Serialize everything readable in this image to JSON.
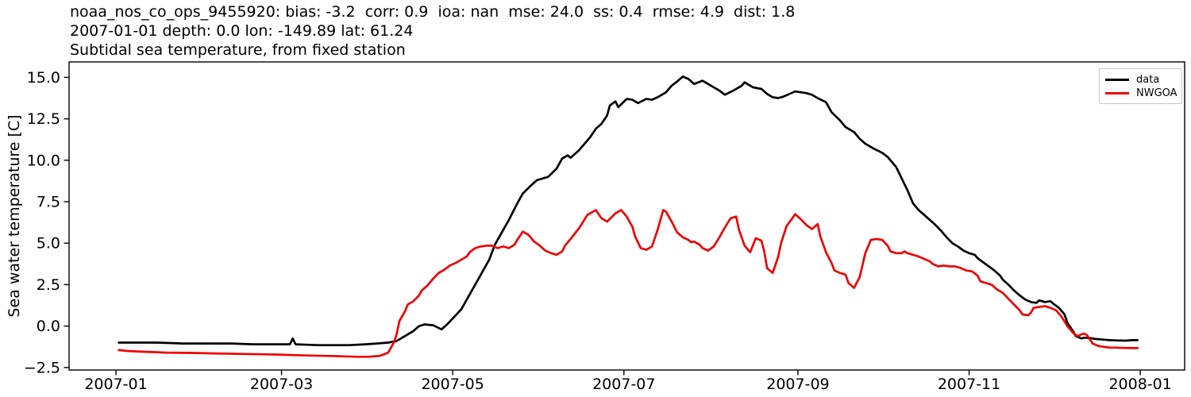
{
  "chart": {
    "titles": [
      "noaa_nos_co_ops_9455920: bias: -3.2  corr: 0.9  ioa: nan  mse: 24.0  ss: 0.4  rmse: 4.9  dist: 1.8",
      "2007-01-01 depth: 0.0 lon: -149.89 lat: 61.24",
      "Subtidal sea temperature, from fixed station"
    ],
    "ylabel": "Sea water temperature [C]",
    "colors": {
      "data_line": "#000000",
      "nwgoa_line": "#ee0000",
      "axis": "#000000",
      "legend_border": "#c9c9c9",
      "background": "#ffffff"
    },
    "legend": [
      {
        "label": "data",
        "color": "#000000"
      },
      {
        "label": "NWGOA",
        "color": "#ee0000"
      }
    ]
  },
  "chart_data": {
    "type": "line",
    "title": "Subtidal sea temperature, from fixed station",
    "xlabel": "",
    "ylabel": "Sea water temperature [C]",
    "x_unit": "days since 2007-01-01",
    "xlim_days": [
      -16.7,
      380.8
    ],
    "ylim": [
      -2.65,
      15.93
    ],
    "grid": false,
    "legend_position": "upper right",
    "x_ticks": [
      {
        "day": 0,
        "label": "2007-01"
      },
      {
        "day": 59,
        "label": "2007-03"
      },
      {
        "day": 120,
        "label": "2007-05"
      },
      {
        "day": 181,
        "label": "2007-07"
      },
      {
        "day": 243,
        "label": "2007-09"
      },
      {
        "day": 304,
        "label": "2007-11"
      },
      {
        "day": 365,
        "label": "2008-01"
      }
    ],
    "y_ticks": [
      {
        "value": 15.0,
        "label": "15.0"
      },
      {
        "value": 12.5,
        "label": "12.5"
      },
      {
        "value": 10.0,
        "label": "10.0"
      },
      {
        "value": 7.5,
        "label": "7.5"
      },
      {
        "value": 5.0,
        "label": "5.0"
      },
      {
        "value": 2.5,
        "label": "2.5"
      },
      {
        "value": 0.0,
        "label": "0.0"
      },
      {
        "value": -2.5,
        "label": "−2.5"
      }
    ],
    "series": [
      {
        "name": "data",
        "color": "#000000",
        "points": [
          [
            1,
            -1.0
          ],
          [
            7,
            -1.0
          ],
          [
            15,
            -1.0
          ],
          [
            24,
            -1.05
          ],
          [
            32,
            -1.05
          ],
          [
            41,
            -1.05
          ],
          [
            49,
            -1.1
          ],
          [
            58,
            -1.1
          ],
          [
            62,
            -1.1
          ],
          [
            63,
            -0.75
          ],
          [
            64,
            -1.1
          ],
          [
            72,
            -1.15
          ],
          [
            77,
            -1.15
          ],
          [
            83,
            -1.15
          ],
          [
            89,
            -1.1
          ],
          [
            93,
            -1.05
          ],
          [
            97,
            -1.0
          ],
          [
            100,
            -0.9
          ],
          [
            103,
            -0.6
          ],
          [
            106,
            -0.3
          ],
          [
            108,
            0.0
          ],
          [
            110,
            0.1
          ],
          [
            113,
            0.05
          ],
          [
            116,
            -0.2
          ],
          [
            118,
            0.1
          ],
          [
            123,
            1.0
          ],
          [
            128,
            2.5
          ],
          [
            133,
            4.0
          ],
          [
            135,
            4.9
          ],
          [
            140,
            6.4
          ],
          [
            143,
            7.4
          ],
          [
            145,
            8.0
          ],
          [
            148,
            8.5
          ],
          [
            150,
            8.8
          ],
          [
            154,
            9.0
          ],
          [
            157,
            9.5
          ],
          [
            159,
            10.1
          ],
          [
            161,
            10.3
          ],
          [
            162,
            10.15
          ],
          [
            165,
            10.6
          ],
          [
            167,
            11.0
          ],
          [
            169,
            11.4
          ],
          [
            171,
            11.9
          ],
          [
            173,
            12.2
          ],
          [
            175,
            12.7
          ],
          [
            176,
            13.3
          ],
          [
            178,
            13.55
          ],
          [
            179,
            13.2
          ],
          [
            182,
            13.7
          ],
          [
            184,
            13.65
          ],
          [
            186,
            13.45
          ],
          [
            189,
            13.7
          ],
          [
            191,
            13.65
          ],
          [
            193,
            13.8
          ],
          [
            196,
            14.1
          ],
          [
            198,
            14.5
          ],
          [
            200,
            14.75
          ],
          [
            202,
            15.05
          ],
          [
            204,
            14.9
          ],
          [
            206,
            14.6
          ],
          [
            209,
            14.8
          ],
          [
            212,
            14.5
          ],
          [
            215,
            14.2
          ],
          [
            217,
            13.95
          ],
          [
            220,
            14.2
          ],
          [
            223,
            14.5
          ],
          [
            224,
            14.7
          ],
          [
            227,
            14.4
          ],
          [
            230,
            14.3
          ],
          [
            232,
            14.0
          ],
          [
            234,
            13.8
          ],
          [
            236,
            13.75
          ],
          [
            238,
            13.85
          ],
          [
            240,
            14.0
          ],
          [
            242,
            14.15
          ],
          [
            244,
            14.1
          ],
          [
            246,
            14.05
          ],
          [
            248,
            13.95
          ],
          [
            250,
            13.75
          ],
          [
            253,
            13.5
          ],
          [
            255,
            12.9
          ],
          [
            258,
            12.4
          ],
          [
            260,
            12.0
          ],
          [
            263,
            11.7
          ],
          [
            265,
            11.3
          ],
          [
            267,
            11.0
          ],
          [
            270,
            10.7
          ],
          [
            273,
            10.45
          ],
          [
            275,
            10.2
          ],
          [
            278,
            9.6
          ],
          [
            280,
            8.9
          ],
          [
            282,
            8.2
          ],
          [
            284,
            7.4
          ],
          [
            286,
            7.0
          ],
          [
            288,
            6.7
          ],
          [
            290,
            6.4
          ],
          [
            292,
            6.1
          ],
          [
            294,
            5.75
          ],
          [
            296,
            5.35
          ],
          [
            298,
            5.0
          ],
          [
            300,
            4.8
          ],
          [
            302,
            4.55
          ],
          [
            304,
            4.4
          ],
          [
            306,
            4.3
          ],
          [
            307,
            4.1
          ],
          [
            309,
            3.85
          ],
          [
            311,
            3.6
          ],
          [
            313,
            3.35
          ],
          [
            315,
            3.05
          ],
          [
            316,
            2.8
          ],
          [
            318,
            2.5
          ],
          [
            320,
            2.15
          ],
          [
            322,
            1.85
          ],
          [
            324,
            1.6
          ],
          [
            326,
            1.45
          ],
          [
            328,
            1.4
          ],
          [
            329,
            1.55
          ],
          [
            331,
            1.45
          ],
          [
            333,
            1.5
          ],
          [
            334,
            1.35
          ],
          [
            336,
            1.1
          ],
          [
            338,
            0.7
          ],
          [
            339,
            0.2
          ],
          [
            341,
            -0.3
          ],
          [
            342,
            -0.6
          ],
          [
            344,
            -0.75
          ],
          [
            345,
            -0.7
          ],
          [
            347,
            -0.72
          ],
          [
            349,
            -0.78
          ],
          [
            352,
            -0.82
          ],
          [
            354,
            -0.85
          ],
          [
            357,
            -0.87
          ],
          [
            360,
            -0.88
          ],
          [
            362,
            -0.85
          ],
          [
            364,
            -0.85
          ]
        ]
      },
      {
        "name": "NWGOA",
        "color": "#ee0000",
        "points": [
          [
            1,
            -1.45
          ],
          [
            4,
            -1.5
          ],
          [
            10,
            -1.55
          ],
          [
            18,
            -1.6
          ],
          [
            27,
            -1.62
          ],
          [
            35,
            -1.65
          ],
          [
            44,
            -1.68
          ],
          [
            52,
            -1.7
          ],
          [
            58,
            -1.72
          ],
          [
            63,
            -1.75
          ],
          [
            69,
            -1.78
          ],
          [
            75,
            -1.8
          ],
          [
            80,
            -1.82
          ],
          [
            86,
            -1.85
          ],
          [
            90,
            -1.85
          ],
          [
            94,
            -1.8
          ],
          [
            97,
            -1.6
          ],
          [
            99,
            -1.0
          ],
          [
            100,
            -0.5
          ],
          [
            101,
            0.3
          ],
          [
            103,
            0.9
          ],
          [
            104,
            1.3
          ],
          [
            106,
            1.5
          ],
          [
            108,
            1.85
          ],
          [
            109,
            2.15
          ],
          [
            111,
            2.45
          ],
          [
            113,
            2.85
          ],
          [
            115,
            3.2
          ],
          [
            117,
            3.4
          ],
          [
            119,
            3.65
          ],
          [
            121,
            3.8
          ],
          [
            123,
            4.0
          ],
          [
            125,
            4.2
          ],
          [
            126,
            4.45
          ],
          [
            128,
            4.7
          ],
          [
            130,
            4.8
          ],
          [
            132,
            4.85
          ],
          [
            134,
            4.85
          ],
          [
            136,
            4.7
          ],
          [
            138,
            4.8
          ],
          [
            140,
            4.7
          ],
          [
            142,
            4.9
          ],
          [
            143,
            5.2
          ],
          [
            145,
            5.7
          ],
          [
            147,
            5.5
          ],
          [
            149,
            5.1
          ],
          [
            151,
            4.85
          ],
          [
            153,
            4.55
          ],
          [
            155,
            4.4
          ],
          [
            157,
            4.3
          ],
          [
            159,
            4.5
          ],
          [
            160,
            4.85
          ],
          [
            162,
            5.25
          ],
          [
            165,
            5.9
          ],
          [
            168,
            6.7
          ],
          [
            171,
            7.0
          ],
          [
            173,
            6.5
          ],
          [
            175,
            6.3
          ],
          [
            178,
            6.8
          ],
          [
            180,
            7.0
          ],
          [
            182,
            6.6
          ],
          [
            184,
            6.0
          ],
          [
            185,
            5.4
          ],
          [
            187,
            4.7
          ],
          [
            189,
            4.6
          ],
          [
            191,
            4.8
          ],
          [
            193,
            5.8
          ],
          [
            195,
            7.0
          ],
          [
            196,
            6.9
          ],
          [
            198,
            6.3
          ],
          [
            200,
            5.65
          ],
          [
            202,
            5.35
          ],
          [
            204,
            5.2
          ],
          [
            205,
            5.05
          ],
          [
            206,
            5.1
          ],
          [
            208,
            4.9
          ],
          [
            209,
            4.7
          ],
          [
            211,
            4.55
          ],
          [
            213,
            4.8
          ],
          [
            215,
            5.35
          ],
          [
            217,
            5.95
          ],
          [
            219,
            6.5
          ],
          [
            221,
            6.6
          ],
          [
            222,
            5.8
          ],
          [
            224,
            4.85
          ],
          [
            226,
            4.45
          ],
          [
            228,
            5.3
          ],
          [
            230,
            5.15
          ],
          [
            231,
            4.5
          ],
          [
            232,
            3.5
          ],
          [
            234,
            3.2
          ],
          [
            236,
            4.2
          ],
          [
            237,
            5.0
          ],
          [
            239,
            6.05
          ],
          [
            241,
            6.5
          ],
          [
            242,
            6.75
          ],
          [
            244,
            6.45
          ],
          [
            246,
            6.1
          ],
          [
            248,
            5.85
          ],
          [
            250,
            6.15
          ],
          [
            251,
            5.4
          ],
          [
            253,
            4.45
          ],
          [
            255,
            3.8
          ],
          [
            256,
            3.35
          ],
          [
            258,
            3.2
          ],
          [
            260,
            3.1
          ],
          [
            261,
            2.6
          ],
          [
            263,
            2.3
          ],
          [
            265,
            2.95
          ],
          [
            267,
            4.4
          ],
          [
            269,
            5.2
          ],
          [
            271,
            5.25
          ],
          [
            273,
            5.2
          ],
          [
            275,
            4.85
          ],
          [
            276,
            4.5
          ],
          [
            278,
            4.4
          ],
          [
            280,
            4.4
          ],
          [
            281,
            4.5
          ],
          [
            282,
            4.4
          ],
          [
            284,
            4.3
          ],
          [
            286,
            4.2
          ],
          [
            288,
            4.05
          ],
          [
            290,
            3.9
          ],
          [
            291,
            3.75
          ],
          [
            293,
            3.6
          ],
          [
            295,
            3.65
          ],
          [
            297,
            3.6
          ],
          [
            299,
            3.6
          ],
          [
            301,
            3.5
          ],
          [
            303,
            3.35
          ],
          [
            305,
            3.3
          ],
          [
            307,
            3.05
          ],
          [
            308,
            2.7
          ],
          [
            310,
            2.6
          ],
          [
            312,
            2.5
          ],
          [
            314,
            2.2
          ],
          [
            316,
            2.0
          ],
          [
            318,
            1.65
          ],
          [
            320,
            1.3
          ],
          [
            322,
            0.95
          ],
          [
            323,
            0.7
          ],
          [
            325,
            0.65
          ],
          [
            326,
            0.8
          ],
          [
            327,
            1.1
          ],
          [
            329,
            1.15
          ],
          [
            331,
            1.2
          ],
          [
            333,
            1.1
          ],
          [
            335,
            0.95
          ],
          [
            337,
            0.55
          ],
          [
            339,
            0.0
          ],
          [
            341,
            -0.4
          ],
          [
            342,
            -0.55
          ],
          [
            343,
            -0.6
          ],
          [
            344,
            -0.5
          ],
          [
            345,
            -0.45
          ],
          [
            346,
            -0.55
          ],
          [
            347,
            -0.8
          ],
          [
            348,
            -1.05
          ],
          [
            350,
            -1.2
          ],
          [
            352,
            -1.25
          ],
          [
            354,
            -1.3
          ],
          [
            356,
            -1.3
          ],
          [
            359,
            -1.32
          ],
          [
            362,
            -1.33
          ],
          [
            364,
            -1.33
          ]
        ]
      }
    ]
  }
}
